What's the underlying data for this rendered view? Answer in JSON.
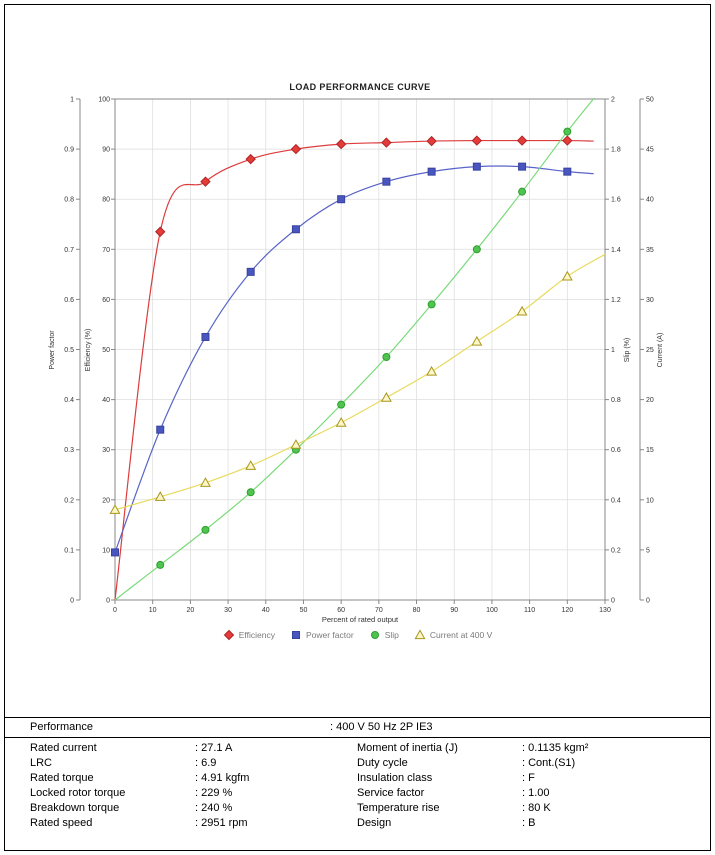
{
  "chart_data": {
    "type": "line",
    "title": "LOAD PERFORMANCE CURVE",
    "xlabel": "Percent of rated output",
    "xlim": [
      0,
      130
    ],
    "x_ticks": [
      "0",
      "10",
      "20",
      "30",
      "40",
      "50",
      "60",
      "70",
      "80",
      "90",
      "100",
      "110",
      "120",
      "130"
    ],
    "grid": true,
    "legend_position": "bottom",
    "axes": [
      {
        "id": "pf",
        "label": "Power factor",
        "min": 0,
        "max": 1,
        "ticks": [
          "0",
          "0.1",
          "0.2",
          "0.3",
          "0.4",
          "0.5",
          "0.6",
          "0.7",
          "0.8",
          "0.9",
          "1"
        ]
      },
      {
        "id": "eff",
        "label": "Efficiency (%)",
        "min": 0,
        "max": 100,
        "ticks": [
          "0",
          "10",
          "20",
          "30",
          "40",
          "50",
          "60",
          "70",
          "80",
          "90",
          "100"
        ]
      },
      {
        "id": "slip",
        "label": "Slip (%)",
        "min": 0,
        "max": 2,
        "ticks": [
          "0",
          "0.2",
          "0.4",
          "0.6",
          "0.8",
          "1",
          "1.2",
          "1.4",
          "1.6",
          "1.8",
          "2"
        ]
      },
      {
        "id": "cur",
        "label": "Current (A)",
        "min": 0,
        "max": 50,
        "ticks": [
          "0",
          "5",
          "10",
          "15",
          "20",
          "25",
          "30",
          "35",
          "40",
          "45",
          "50"
        ]
      }
    ],
    "series": [
      {
        "name": "Efficiency",
        "axis": "eff",
        "marker": "diamond",
        "line_color": "#dd3c3c",
        "marker_fill": "#e43b3b",
        "marker_stroke": "#b02525",
        "line": {
          "x": [
            0,
            12,
            24,
            36,
            48,
            60,
            72,
            84,
            96,
            108,
            120,
            127
          ],
          "y": [
            0,
            73.5,
            83.5,
            88,
            90,
            91,
            91.3,
            91.6,
            91.7,
            91.7,
            91.7,
            91.6
          ]
        },
        "points": {
          "x": [
            12,
            24,
            36,
            48,
            60,
            72,
            84,
            96,
            108,
            120
          ],
          "y": [
            73.5,
            83.5,
            88,
            90,
            91,
            91.3,
            91.6,
            91.7,
            91.7,
            91.7
          ]
        }
      },
      {
        "name": "Power factor",
        "axis": "pf",
        "marker": "square",
        "line_color": "#5a64c8",
        "marker_fill": "#4a56c0",
        "marker_stroke": "#38439c",
        "line": {
          "x": [
            0,
            12,
            24,
            36,
            48,
            60,
            72,
            84,
            96,
            108,
            120,
            127
          ],
          "y": [
            0.095,
            0.34,
            0.525,
            0.655,
            0.74,
            0.8,
            0.835,
            0.855,
            0.865,
            0.865,
            0.855,
            0.851
          ]
        },
        "points": {
          "x": [
            0,
            12,
            24,
            36,
            48,
            60,
            72,
            84,
            96,
            108,
            120
          ],
          "y": [
            0.095,
            0.34,
            0.525,
            0.655,
            0.74,
            0.8,
            0.835,
            0.855,
            0.865,
            0.865,
            0.855
          ]
        }
      },
      {
        "name": "Slip",
        "axis": "slip",
        "marker": "circle",
        "line_color": "#79da79",
        "marker_fill": "#50c450",
        "marker_stroke": "#2f9e2f",
        "line": {
          "x": [
            0,
            12,
            24,
            36,
            48,
            60,
            72,
            84,
            96,
            108,
            120,
            128
          ],
          "y": [
            0,
            0.14,
            0.28,
            0.43,
            0.6,
            0.78,
            0.97,
            1.18,
            1.4,
            1.63,
            1.87,
            2.02
          ]
        },
        "points": {
          "x": [
            12,
            24,
            36,
            48,
            60,
            72,
            84,
            96,
            108,
            120
          ],
          "y": [
            0.14,
            0.28,
            0.43,
            0.6,
            0.78,
            0.97,
            1.18,
            1.4,
            1.63,
            1.87
          ]
        }
      },
      {
        "name": "Current at 400 V",
        "axis": "cur",
        "marker": "triangle",
        "line_color": "#e8da5e",
        "marker_fill": "#fcf7c6",
        "marker_stroke": "#a8961e",
        "line": {
          "x": [
            0,
            12,
            24,
            36,
            48,
            60,
            72,
            84,
            96,
            108,
            120,
            130
          ],
          "y": [
            9,
            10.3,
            11.7,
            13.4,
            15.5,
            17.7,
            20.2,
            22.8,
            25.8,
            28.8,
            32.3,
            34.5
          ]
        },
        "points": {
          "x": [
            0,
            12,
            24,
            36,
            48,
            60,
            72,
            84,
            96,
            108,
            120
          ],
          "y": [
            9,
            10.3,
            11.7,
            13.4,
            15.5,
            17.7,
            20.2,
            22.8,
            25.8,
            28.8,
            32.3
          ]
        }
      }
    ],
    "legend": [
      {
        "label": "Efficiency",
        "marker": "diamond"
      },
      {
        "label": "Power factor",
        "marker": "square"
      },
      {
        "label": "Slip",
        "marker": "circle"
      },
      {
        "label": "Current at 400 V",
        "marker": "triangle"
      }
    ]
  },
  "table": {
    "header": {
      "label": "Performance",
      "value": ": 400 V 50 Hz 2P IE3"
    },
    "rows": [
      {
        "l1": "Rated current",
        "v1": ": 27.1 A",
        "l2": "Moment of inertia (J)",
        "v2": ": 0.1135 kgm²"
      },
      {
        "l1": "LRC",
        "v1": ": 6.9",
        "l2": "Duty cycle",
        "v2": ": Cont.(S1)"
      },
      {
        "l1": "Rated torque",
        "v1": ": 4.91 kgfm",
        "l2": "Insulation class",
        "v2": ": F"
      },
      {
        "l1": "Locked rotor torque",
        "v1": ": 229 %",
        "l2": "Service factor",
        "v2": ": 1.00"
      },
      {
        "l1": "Breakdown torque",
        "v1": ": 240 %",
        "l2": "Temperature rise",
        "v2": ": 80 K"
      },
      {
        "l1": "Rated speed",
        "v1": ": 2951 rpm",
        "l2": "Design",
        "v2": ": B"
      }
    ]
  }
}
